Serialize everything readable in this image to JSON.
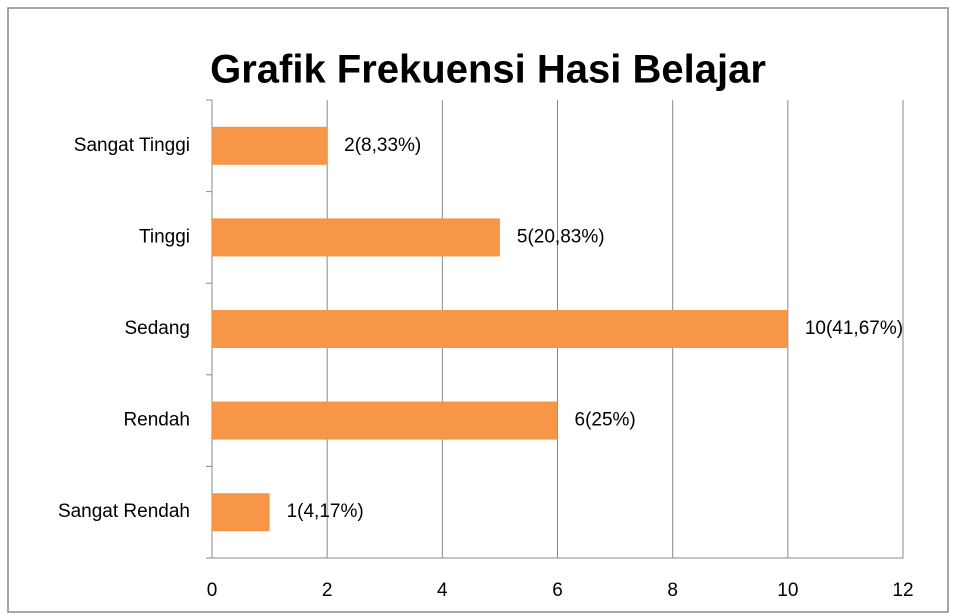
{
  "chart_data": {
    "type": "bar",
    "orientation": "horizontal",
    "title": "Grafik Frekuensi Hasi Belajar",
    "categories": [
      "Sangat Tinggi",
      "Tinggi",
      "Sedang",
      "Rendah",
      "Sangat Rendah"
    ],
    "values": [
      2,
      5,
      10,
      6,
      1
    ],
    "value_labels": [
      "2(8,33%)",
      "5(20,83%)",
      "10(41,67%)",
      "6(25%)",
      "1(4,17%)"
    ],
    "color": "#f79646",
    "xlim": [
      0,
      12
    ],
    "xticks": [
      0,
      2,
      4,
      6,
      8,
      10,
      12
    ],
    "grid": true
  }
}
